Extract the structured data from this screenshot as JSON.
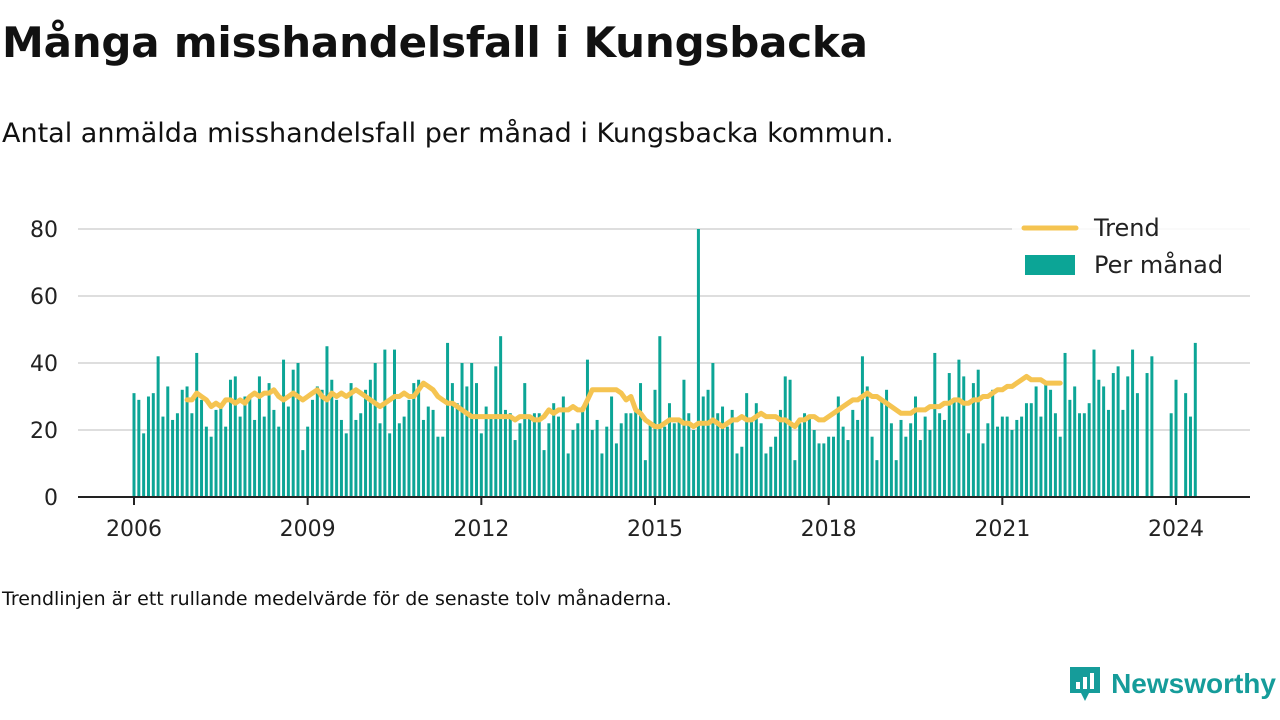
{
  "header": {
    "title": "Många misshandelsfall i Kungsbacka",
    "subtitle": "Antal anmälda misshandelsfall per månad i Kungsbacka kommun."
  },
  "footnote": "Trendlinjen är ett rullande medelvärde för de senaste tolv månaderna.",
  "brand": {
    "name": "Newsworthy",
    "icon": "newsworthy-logo-icon",
    "color": "#159c9a"
  },
  "colors": {
    "bar": "#0ca596",
    "trend": "#f5c451",
    "grid": "#dedede",
    "axis": "#222222"
  },
  "chart_data": {
    "type": "bar",
    "title": "Många misshandelsfall i Kungsbacka",
    "xlabel": "",
    "ylabel": "",
    "ylim": [
      0,
      80
    ],
    "yticks": [
      0,
      20,
      40,
      60,
      80
    ],
    "xticks": [
      "2006",
      "2009",
      "2012",
      "2015",
      "2018",
      "2021",
      "2024"
    ],
    "grid": true,
    "legend_position": "top-right",
    "start_month": "2006-01",
    "series": [
      {
        "name": "Per månad",
        "type": "bar",
        "values": [
          31,
          29,
          19,
          30,
          31,
          42,
          24,
          33,
          23,
          25,
          32,
          33,
          25,
          43,
          29,
          21,
          18,
          26,
          27,
          21,
          35,
          36,
          24,
          30,
          30,
          23,
          36,
          24,
          34,
          26,
          21,
          41,
          27,
          38,
          40,
          14,
          21,
          29,
          33,
          32,
          45,
          35,
          29,
          23,
          19,
          34,
          23,
          25,
          32,
          35,
          40,
          22,
          44,
          19,
          44,
          22,
          24,
          29,
          34,
          35,
          23,
          27,
          26,
          18,
          18,
          46,
          34,
          28,
          40,
          33,
          40,
          34,
          19,
          27,
          24,
          39,
          48,
          26,
          25,
          17,
          22,
          34,
          24,
          25,
          25,
          14,
          22,
          28,
          24,
          30,
          13,
          20,
          22,
          27,
          41,
          20,
          23,
          13,
          21,
          30,
          16,
          22,
          25,
          25,
          26,
          34,
          11,
          22,
          32,
          48,
          21,
          28,
          22,
          23,
          35,
          25,
          20,
          80,
          30,
          32,
          40,
          25,
          27,
          21,
          26,
          13,
          15,
          31,
          23,
          28,
          22,
          13,
          15,
          18,
          26,
          36,
          35,
          11,
          22,
          25,
          24,
          20,
          16,
          16,
          18,
          18,
          30,
          21,
          17,
          26,
          23,
          42,
          33,
          18,
          11,
          29,
          32,
          22,
          11,
          23,
          18,
          22,
          30,
          17,
          24,
          20,
          43,
          25,
          23,
          37,
          29,
          41,
          36,
          19,
          34,
          38,
          16,
          22,
          32,
          21,
          24,
          24,
          20,
          23,
          24,
          28,
          28,
          33,
          24,
          34,
          32,
          25,
          18,
          43,
          29,
          33,
          25,
          25,
          28,
          44,
          35,
          33,
          26,
          37,
          39,
          26,
          36,
          44,
          31,
          null,
          37,
          42,
          null,
          null,
          null,
          25,
          35,
          null,
          31,
          24,
          46
        ]
      },
      {
        "name": "Trend",
        "type": "line",
        "start_index": 11,
        "values": [
          29,
          29,
          31,
          30,
          29,
          27,
          28,
          27,
          29,
          29,
          28,
          29,
          28,
          30,
          31,
          30,
          31,
          31,
          32,
          30,
          29,
          30,
          31,
          30,
          29,
          30,
          31,
          32,
          30,
          29,
          31,
          30,
          31,
          30,
          31,
          32,
          31,
          30,
          29,
          28,
          27,
          28,
          29,
          30,
          30,
          31,
          30,
          30,
          32,
          34,
          33,
          32,
          30,
          29,
          28,
          28,
          27,
          26,
          25,
          24,
          24,
          24,
          24,
          24,
          24,
          24,
          24,
          24,
          23,
          24,
          24,
          24,
          23,
          23,
          24,
          26,
          25,
          26,
          26,
          26,
          27,
          26,
          26,
          29,
          32,
          32,
          32,
          32,
          32,
          32,
          31,
          29,
          30,
          26,
          25,
          23,
          22,
          21,
          21,
          22,
          23,
          23,
          23,
          22,
          22,
          21,
          22,
          22,
          22,
          23,
          22,
          21,
          22,
          23,
          23,
          24,
          23,
          23,
          24,
          25,
          24,
          24,
          24,
          23,
          23,
          22,
          21,
          23,
          23,
          24,
          24,
          23,
          23,
          24,
          25,
          26,
          27,
          28,
          29,
          29,
          30,
          31,
          30,
          30,
          29,
          28,
          27,
          26,
          25,
          25,
          25,
          26,
          26,
          26,
          27,
          27,
          27,
          28,
          28,
          29,
          29,
          28,
          28,
          29,
          29,
          30,
          30,
          31,
          32,
          32,
          33,
          33,
          34,
          35,
          36,
          35,
          35,
          35,
          34,
          34,
          34,
          34
        ]
      }
    ]
  }
}
